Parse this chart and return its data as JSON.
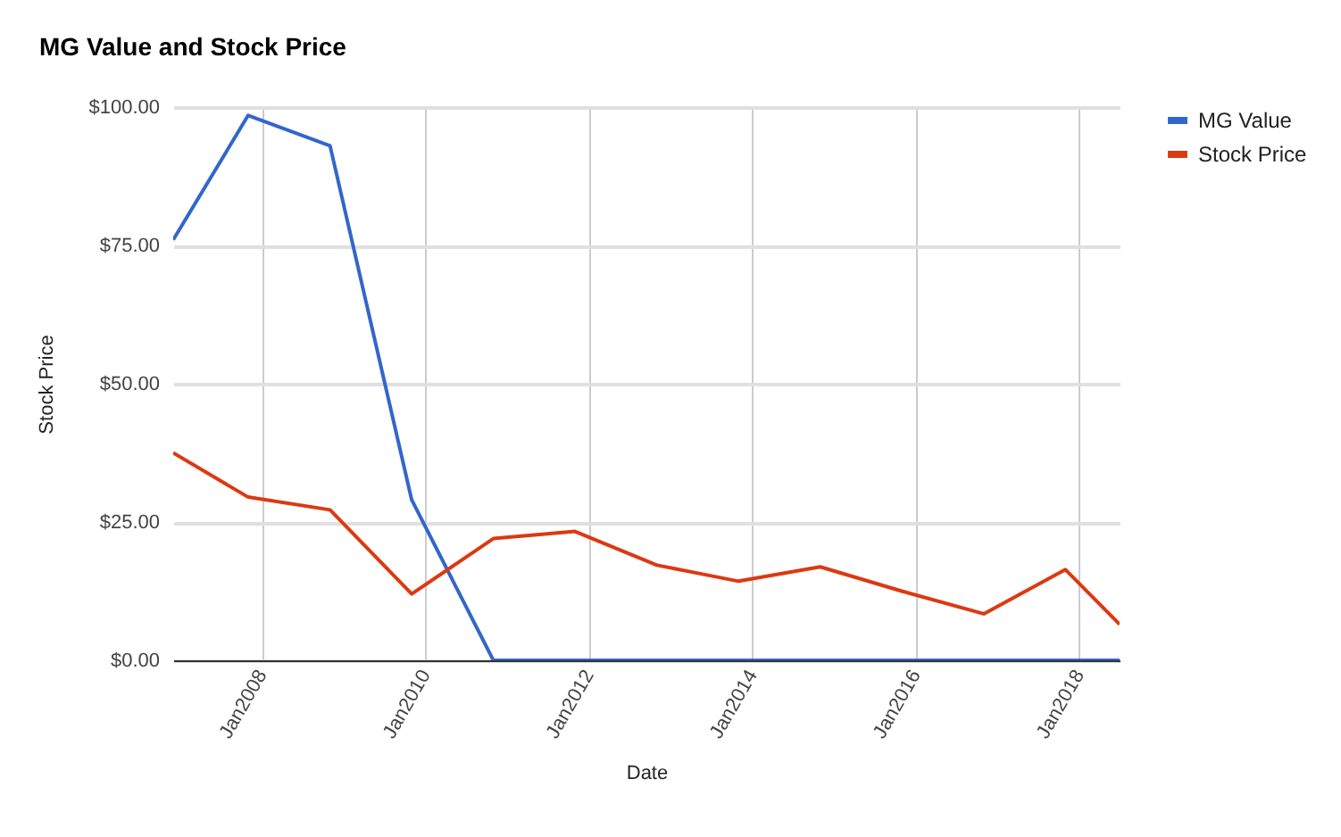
{
  "chart_data": {
    "type": "line",
    "title": "MG Value and Stock Price",
    "xlabel": "Date",
    "ylabel": "Stock Price",
    "x": [
      "2006-12",
      "2007-11",
      "2008-11",
      "2009-11",
      "2010-11",
      "2011-11",
      "2012-11",
      "2013-11",
      "2014-11",
      "2015-11",
      "2016-11",
      "2017-11",
      "2018-07"
    ],
    "series": [
      {
        "name": "MG Value",
        "color": "#3366cc",
        "values": [
          76,
          98.5,
          93,
          29,
          0,
          0,
          0,
          0,
          0,
          0,
          0,
          0,
          0
        ]
      },
      {
        "name": "Stock Price",
        "color": "#dc3912",
        "values": [
          37.5,
          29.5,
          27.2,
          12,
          22,
          23.3,
          17.2,
          14.3,
          16.9,
          12.5,
          8.4,
          16.4,
          6.5
        ]
      }
    ],
    "xlim": [
      "2006-12",
      "2018-07"
    ],
    "xticks": [
      {
        "value": "2008-01",
        "label": "Jan2008"
      },
      {
        "value": "2010-01",
        "label": "Jan2010"
      },
      {
        "value": "2012-01",
        "label": "Jan2012"
      },
      {
        "value": "2014-01",
        "label": "Jan2014"
      },
      {
        "value": "2016-01",
        "label": "Jan2016"
      },
      {
        "value": "2018-01",
        "label": "Jan2018"
      }
    ],
    "ylim": [
      0,
      100
    ],
    "yticks": [
      {
        "value": 0,
        "label": "$0.00"
      },
      {
        "value": 25,
        "label": "$25.00"
      },
      {
        "value": 50,
        "label": "$50.00"
      },
      {
        "value": 75,
        "label": "$75.00"
      },
      {
        "value": 100,
        "label": "$100.00"
      }
    ],
    "grid": true,
    "legend": "top right",
    "line_style": "solid",
    "marker": "none"
  }
}
